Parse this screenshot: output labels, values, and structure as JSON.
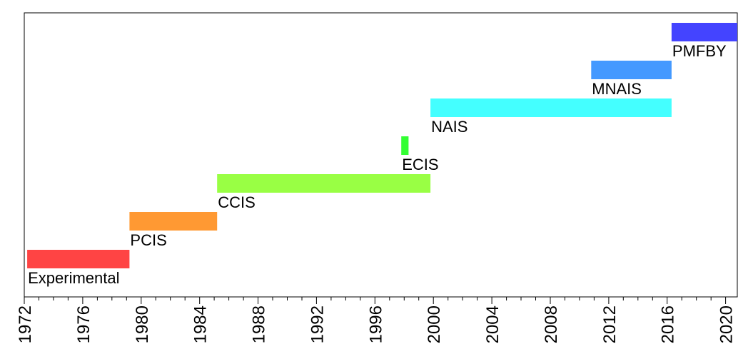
{
  "chart_data": {
    "type": "bar",
    "orientation": "horizontal-timeline",
    "x_unit": "year",
    "xlim": [
      1972,
      2020.8
    ],
    "x_ticks": [
      1972,
      1976,
      1980,
      1984,
      1988,
      1992,
      1996,
      2000,
      2004,
      2008,
      2012,
      2016,
      2020
    ],
    "x_tick_labels": [
      "1972",
      "1976",
      "1980",
      "1984",
      "1988",
      "1992",
      "1996",
      "2000",
      "2004",
      "2008",
      "2012",
      "2016",
      "2020"
    ],
    "minor_tick_step": 1,
    "grid": false,
    "bars": [
      {
        "label": "Experimental",
        "start": 1972.2,
        "end": 1979.2,
        "color": "#ff4444"
      },
      {
        "label": "PCIS",
        "start": 1979.2,
        "end": 1985.2,
        "color": "#ff9933"
      },
      {
        "label": "CCIS",
        "start": 1985.2,
        "end": 1999.8,
        "color": "#99ff44"
      },
      {
        "label": "ECIS",
        "start": 1997.8,
        "end": 1998.3,
        "color": "#33ff33"
      },
      {
        "label": "NAIS",
        "start": 1999.8,
        "end": 2016.3,
        "color": "#44ffff"
      },
      {
        "label": "MNAIS",
        "start": 2010.8,
        "end": 2016.3,
        "color": "#4499ff"
      },
      {
        "label": "PMFBY",
        "start": 2016.3,
        "end": 2020.8,
        "color": "#4444ff"
      }
    ]
  }
}
